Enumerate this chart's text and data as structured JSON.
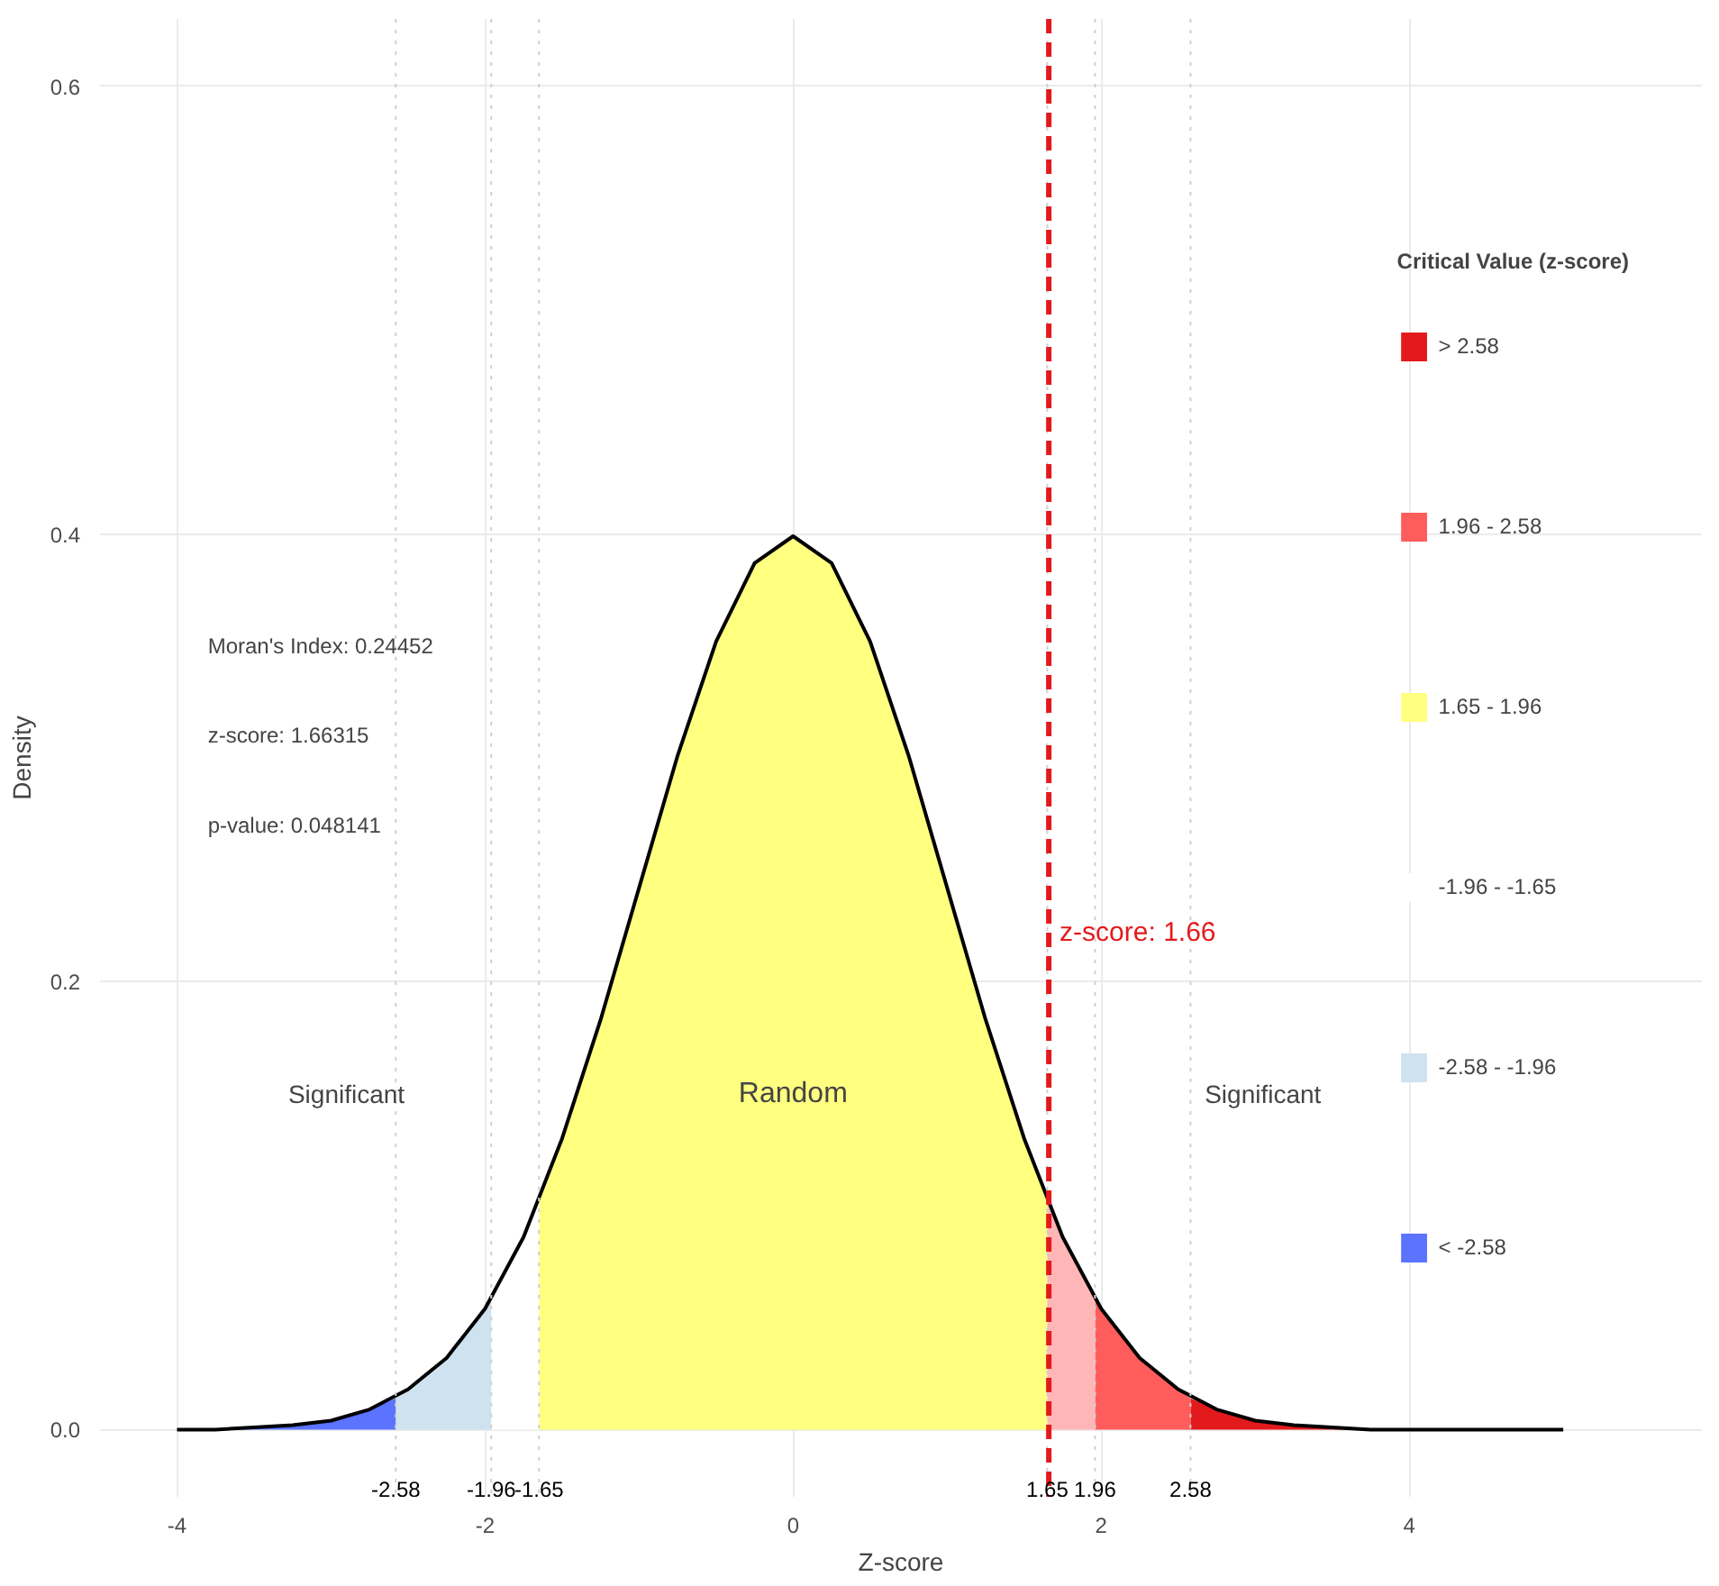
{
  "chart_data": {
    "type": "area",
    "xlabel": "Z-score",
    "ylabel": "Density",
    "legend_title": "Critical Value (z-score)",
    "xlim": [
      -4.5,
      5.9
    ],
    "ylim": [
      -0.03,
      0.63
    ],
    "xticks": [
      -4,
      -2,
      0,
      2,
      4
    ],
    "yticks": [
      {
        "value": 0,
        "label": "0.0"
      },
      {
        "value": 0.2,
        "label": "0.2"
      },
      {
        "value": 0.4,
        "label": "0.4"
      },
      {
        "value": 0.6,
        "label": "0.6"
      }
    ],
    "grid": true,
    "legend": "right",
    "series": [
      {
        "name": "> 2.58",
        "color": "#e31a1c",
        "x": [
          2.58,
          2.75,
          3,
          3.25,
          3.5,
          3.75,
          4,
          4.5,
          5
        ],
        "values": [
          0.014,
          0.009,
          0.004,
          0.002,
          0.001,
          0,
          0,
          0,
          0
        ]
      },
      {
        "name": "1.96 - 2.58",
        "color": "#ff5c5c",
        "x": [
          1.96,
          2,
          2.25,
          2.5,
          2.58
        ],
        "values": [
          0.058,
          0.054,
          0.032,
          0.018,
          0.014
        ]
      },
      {
        "name": "1.65 - 1.96",
        "color": "#ffff80",
        "x": [
          -1.65,
          -1.5,
          -1.25,
          -1,
          -0.75,
          -0.5,
          -0.25,
          0,
          0.25,
          0.5,
          0.75,
          1,
          1.25,
          1.5,
          1.65
        ],
        "values": [
          0.102,
          0.13,
          0.183,
          0.242,
          0.301,
          0.352,
          0.387,
          0.399,
          0.387,
          0.352,
          0.301,
          0.242,
          0.183,
          0.13,
          0.102
        ]
      },
      {
        "name": "-1.96 - -1.65",
        "color": "#ffffff",
        "x": [
          -1.96,
          -1.75,
          -1.65
        ],
        "values": [
          0.058,
          0.086,
          0.102
        ]
      },
      {
        "name": "-2.58 - -1.96",
        "color": "#cfe2f0",
        "x": [
          -2.58,
          -2.5,
          -2.25,
          -2,
          -1.96
        ],
        "values": [
          0.014,
          0.018,
          0.032,
          0.054,
          0.058
        ]
      },
      {
        "name": "< -2.58",
        "color": "#5b73ff",
        "x": [
          -4,
          -3.75,
          -3.5,
          -3.25,
          -3,
          -2.75,
          -2.58
        ],
        "values": [
          0,
          0,
          0.001,
          0.002,
          0.004,
          0.009,
          0.014
        ]
      },
      {
        "color": "#ffb6b6",
        "x": [
          1.65,
          1.75,
          1.96
        ],
        "values": [
          0.102,
          0.086,
          0.058
        ]
      },
      {
        "type": "line",
        "color": "#000000",
        "x": [
          -4,
          -3.75,
          -3.5,
          -3.25,
          -3,
          -2.75,
          -2.5,
          -2.25,
          -2,
          -1.75,
          -1.5,
          -1.25,
          -1,
          -0.75,
          -0.5,
          -0.25,
          0,
          0.25,
          0.5,
          0.75,
          1,
          1.25,
          1.5,
          1.75,
          2,
          2.25,
          2.5,
          2.75,
          3,
          3.25,
          3.5,
          3.75,
          4,
          4.5,
          5
        ],
        "values": [
          0,
          0,
          0.001,
          0.002,
          0.004,
          0.009,
          0.018,
          0.032,
          0.054,
          0.086,
          0.13,
          0.183,
          0.242,
          0.301,
          0.352,
          0.387,
          0.399,
          0.387,
          0.352,
          0.301,
          0.242,
          0.183,
          0.13,
          0.086,
          0.054,
          0.032,
          0.018,
          0.009,
          0.004,
          0.002,
          0.001,
          0,
          0,
          0,
          0
        ]
      }
    ],
    "ref_lines": [
      {
        "axis": "x",
        "value": -2.58,
        "label": "-2.58",
        "color": "#d0d0d0",
        "line_style": "dotted"
      },
      {
        "axis": "x",
        "value": -1.96,
        "label": "-1.96",
        "color": "#d0d0d0",
        "line_style": "dotted"
      },
      {
        "axis": "x",
        "value": -1.65,
        "label": "-1.65",
        "color": "#d0d0d0",
        "line_style": "dotted"
      },
      {
        "axis": "x",
        "value": 1.65,
        "label": "1.65",
        "color": "#d0d0d0",
        "line_style": "dotted"
      },
      {
        "axis": "x",
        "value": 1.96,
        "label": "1.96",
        "color": "#d0d0d0",
        "line_style": "dotted"
      },
      {
        "axis": "x",
        "value": 2.58,
        "label": "2.58",
        "color": "#d0d0d0",
        "line_style": "dotted"
      },
      {
        "axis": "x",
        "value": 1.66,
        "label": "z-score: 1.66",
        "color": "#e31a1c",
        "line_style": "dashed"
      }
    ],
    "annotations": [
      "Moran's Index: 0.24452",
      "z-score: 1.66315",
      "p-value: 0.048141",
      "Significant",
      "Random",
      "Significant"
    ]
  }
}
